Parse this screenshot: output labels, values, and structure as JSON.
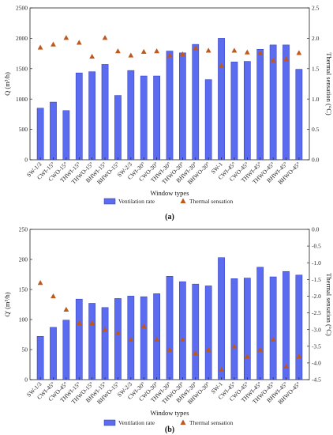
{
  "chart_data": [
    {
      "type": "bar",
      "panel_label": "(a)",
      "categories": [
        "SW-1/3",
        "CWI-15°",
        "CWO-15°",
        "THWI-15°",
        "THWO-15°",
        "BHWI-15°",
        "BHWO-15°",
        "SW-2/3",
        "CWI-30°",
        "CWO-30°",
        "THWI-30°",
        "THWO-30°",
        "BHWI-30°",
        "BHWO-30°",
        "SW-1",
        "CWI-45°",
        "CWO-45°",
        "THWI-45°",
        "THWO-45°",
        "BHWI-45°",
        "BHWO-45°"
      ],
      "xlabel": "Window types",
      "ylabel": "Q (m³/h)",
      "y2label": "Thermal sensation (°C)",
      "ylim": [
        0,
        2500
      ],
      "y2lim": [
        0.0,
        2.5
      ],
      "yticks": [
        "0",
        "500",
        "1000",
        "1500",
        "2000",
        "2500"
      ],
      "y2ticks": [
        "0.0",
        "0.5",
        "1.0",
        "1.5",
        "2.0",
        "2.5"
      ],
      "series": [
        {
          "name": "Ventilation rate",
          "kind": "bar",
          "axis": "left",
          "values": [
            850,
            950,
            810,
            1430,
            1450,
            1570,
            1060,
            1470,
            1380,
            1380,
            1790,
            1760,
            1900,
            1320,
            2000,
            1610,
            1620,
            1820,
            1890,
            1890,
            1490
          ]
        },
        {
          "name": "Thermal sensation",
          "kind": "marker",
          "axis": "right",
          "values": [
            1.85,
            1.9,
            2.01,
            1.93,
            1.7,
            2.01,
            1.79,
            1.72,
            1.78,
            1.79,
            1.72,
            1.74,
            1.84,
            1.8,
            1.55,
            1.8,
            1.77,
            1.76,
            1.64,
            1.66,
            1.76
          ]
        }
      ],
      "legend_position": "bottom",
      "grid": false
    },
    {
      "type": "bar",
      "panel_label": "(b)",
      "categories": [
        "SW-1/3",
        "CWI-45°",
        "CWO-45°",
        "THWI-15°",
        "THWO-15°",
        "BHWI-15°",
        "BHWO-15°",
        "SW-2/3",
        "CWI-30°",
        "CWO-30°",
        "THWI-30°",
        "THWO-30°",
        "BHWI-30°",
        "BHWO-30°",
        "SW-1",
        "CWI-45°",
        "CWO-45°",
        "THWI-45°",
        "THWO-45°",
        "BHWI-45°",
        "BHWO-45°"
      ],
      "xlabel": "Window types",
      "ylabel": "Q' (m³/h)",
      "y2label": "Thermal sensation (°C)",
      "ylim": [
        0,
        250
      ],
      "y2lim": [
        -4.5,
        0.0
      ],
      "yticks": [
        "0",
        "50",
        "100",
        "150",
        "200",
        "250"
      ],
      "y2ticks": [
        "-4.5",
        "-4.0",
        "-3.5",
        "-3.0",
        "-2.5",
        "-2.0",
        "-1.5",
        "-1.0",
        "-0.5",
        "0.0"
      ],
      "series": [
        {
          "name": "Ventilation rate",
          "kind": "bar",
          "axis": "left",
          "values": [
            72,
            87,
            99,
            134,
            127,
            120,
            135,
            139,
            138,
            143,
            172,
            163,
            159,
            156,
            203,
            168,
            169,
            187,
            171,
            180,
            174
          ]
        },
        {
          "name": "Thermal sensation",
          "kind": "marker",
          "axis": "right",
          "values": [
            -1.6,
            -2.0,
            -2.4,
            -2.8,
            -2.8,
            -3.0,
            -3.1,
            -3.3,
            -2.9,
            -3.3,
            -3.6,
            -3.3,
            -3.7,
            -3.6,
            -4.2,
            -3.5,
            -3.8,
            -3.6,
            -3.3,
            -4.1,
            -3.8
          ]
        }
      ],
      "legend_position": "bottom",
      "grid": false
    }
  ],
  "colors": {
    "bar_fill": "#5b6cf0",
    "bar_stroke": "#2a36b8",
    "marker": "#c0581c",
    "axis": "#222222"
  }
}
